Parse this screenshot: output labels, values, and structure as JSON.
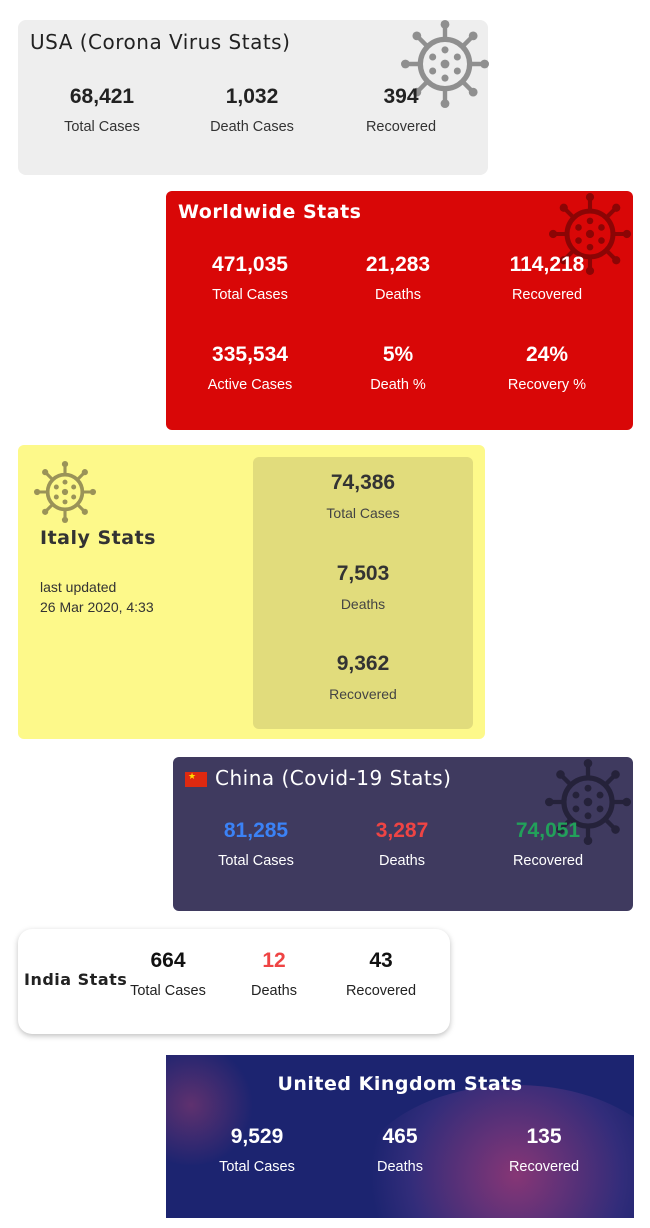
{
  "usa": {
    "title": "USA (Corona Virus Stats)",
    "stats": [
      {
        "value": "68,421",
        "label": "Total Cases"
      },
      {
        "value": "1,032",
        "label": "Death Cases"
      },
      {
        "value": "394",
        "label": "Recovered"
      }
    ],
    "icon": "virus-icon"
  },
  "world": {
    "title": "Worldwide Stats",
    "stats": [
      {
        "value": "471,035",
        "label": "Total Cases"
      },
      {
        "value": "21,283",
        "label": "Deaths"
      },
      {
        "value": "114,218",
        "label": "Recovered"
      },
      {
        "value": "335,534",
        "label": "Active Cases"
      },
      {
        "value": "5%",
        "label": "Death %"
      },
      {
        "value": "24%",
        "label": "Recovery %"
      }
    ],
    "icon": "virus-icon",
    "bg_color": "#d90707"
  },
  "italy": {
    "title": "Italy Stats",
    "updated_label": "last updated",
    "updated_time": "26 Mar 2020, 4:33",
    "stats": [
      {
        "value": "74,386",
        "label": "Total Cases"
      },
      {
        "value": "7,503",
        "label": "Deaths"
      },
      {
        "value": "9,362",
        "label": "Recovered"
      }
    ],
    "icon": "virus-icon",
    "bg_color": "#fdf98a"
  },
  "china": {
    "title": "China (Covid-19 Stats)",
    "stats": [
      {
        "value": "81,285",
        "label": "Total Cases",
        "color": "#3b82f6"
      },
      {
        "value": "3,287",
        "label": "Deaths",
        "color": "#ef4444"
      },
      {
        "value": "74,051",
        "label": "Recovered",
        "color": "#22a05a"
      }
    ],
    "icon": "virus-icon",
    "flag": "china-flag-icon",
    "bg_color": "#3f3a5f"
  },
  "india": {
    "title": "India Stats",
    "stats": [
      {
        "value": "664",
        "label": "Total Cases",
        "color": "#111111"
      },
      {
        "value": "12",
        "label": "Deaths",
        "color": "#ef4444"
      },
      {
        "value": "43",
        "label": "Recovered",
        "color": "#111111"
      }
    ]
  },
  "uk": {
    "title": "United Kingdom Stats",
    "stats": [
      {
        "value": "9,529",
        "label": "Total Cases"
      },
      {
        "value": "465",
        "label": "Deaths"
      },
      {
        "value": "135",
        "label": "Recovered"
      }
    ],
    "bg_color": "#1c2470"
  }
}
